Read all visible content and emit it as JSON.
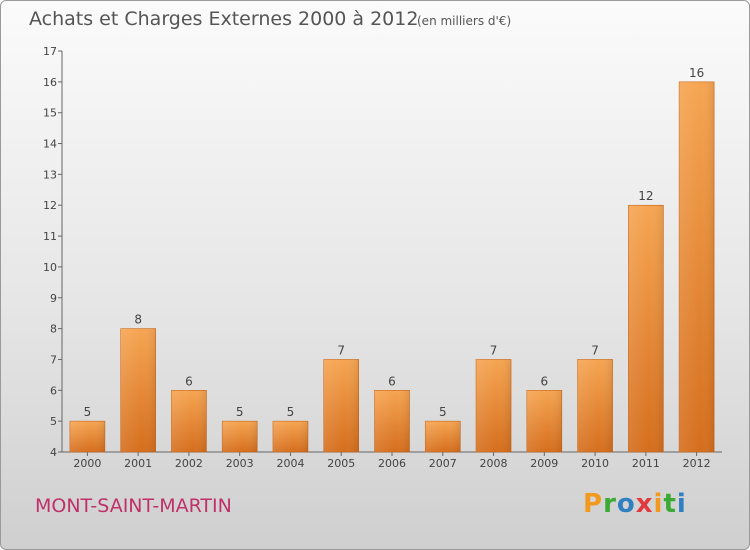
{
  "header": {
    "title": "Achats et Charges Externes 2000 à 2012",
    "unit": "(en milliers d'€)"
  },
  "footer": {
    "commune": "MONT-SAINT-MARTIN",
    "logo_text": "Proxiti",
    "logo_colors": [
      "#f29a1f",
      "#3aaa35",
      "#2f7fc1",
      "#e03a3e",
      "#f29a1f",
      "#3aaa35",
      "#2f7fc1"
    ]
  },
  "colors": {
    "bar_light": "#f6a552",
    "bar_dark": "#d56e1d",
    "axis": "#666666",
    "text": "#444444"
  },
  "chart_data": {
    "type": "bar",
    "title": "Achats et Charges Externes 2000 à 2012",
    "subtitle": "(en milliers d'€)",
    "xlabel": "",
    "ylabel": "",
    "categories": [
      "2000",
      "2001",
      "2002",
      "2003",
      "2004",
      "2005",
      "2006",
      "2007",
      "2008",
      "2009",
      "2010",
      "2011",
      "2012"
    ],
    "values": [
      5,
      8,
      6,
      5,
      5,
      7,
      6,
      5,
      7,
      6,
      7,
      12,
      16
    ],
    "ylim": [
      4,
      17
    ],
    "yticks": [
      4,
      5,
      6,
      7,
      8,
      9,
      10,
      11,
      12,
      13,
      14,
      15,
      16,
      17
    ],
    "grid": false,
    "legend": "none"
  }
}
